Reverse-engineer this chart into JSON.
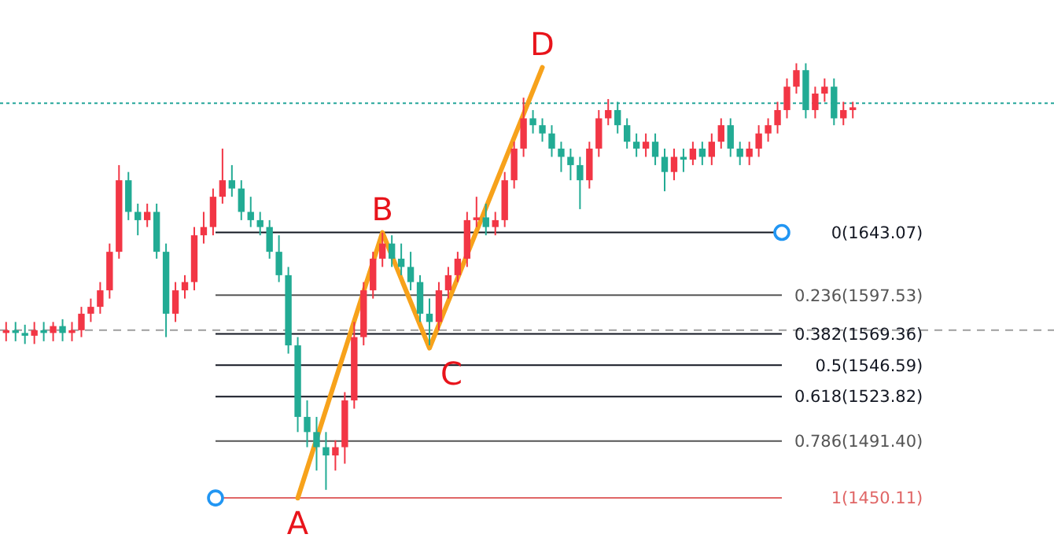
{
  "chart_data": {
    "type": "candlestick",
    "ylim": [
      1413,
      1812
    ],
    "categories": [
      null,
      null,
      null,
      null,
      null,
      null,
      null,
      null,
      null,
      null,
      null,
      null,
      null,
      null,
      null,
      null,
      null,
      null,
      null,
      null,
      null,
      null,
      null,
      null,
      null,
      null,
      null,
      null,
      null,
      null,
      null,
      null,
      null,
      null,
      null,
      null,
      null,
      null,
      null,
      null,
      null,
      null,
      null,
      null,
      null,
      null,
      null,
      null,
      null,
      null,
      null,
      null,
      null,
      null,
      null,
      null,
      null,
      null,
      null,
      null,
      null,
      null,
      null,
      null,
      null,
      null,
      null,
      null,
      null,
      null,
      null,
      null,
      null,
      null,
      null,
      null,
      null,
      null,
      null,
      null,
      null,
      null,
      null,
      null,
      null,
      null,
      null,
      null,
      null,
      null,
      null
    ],
    "yticks": [
      {
        "value": 1643.07,
        "label": "(1643.07)"
      },
      {
        "value": 1597.53,
        "label": "(1597.53)"
      },
      {
        "value": 1569.36,
        "label": "(1569.36)"
      },
      {
        "value": 1546.59,
        "label": "(1546.59)"
      },
      {
        "value": 1523.82,
        "label": "(1523.82)"
      },
      {
        "value": 1491.4,
        "label": "(1491.40)"
      },
      {
        "value": 1450.11,
        "label": "(1450.11)"
      }
    ],
    "ohlc": [
      [
        1570,
        1578,
        1564,
        1572
      ],
      [
        1572,
        1578,
        1564,
        1570
      ],
      [
        1570,
        1576,
        1562,
        1568
      ],
      [
        1568,
        1578,
        1562,
        1572
      ],
      [
        1572,
        1578,
        1564,
        1570
      ],
      [
        1570,
        1578,
        1564,
        1575
      ],
      [
        1575,
        1580,
        1564,
        1570
      ],
      [
        1570,
        1578,
        1564,
        1572
      ],
      [
        1572,
        1589,
        1567,
        1584
      ],
      [
        1584,
        1595,
        1578,
        1589
      ],
      [
        1589,
        1607,
        1584,
        1601
      ],
      [
        1601,
        1635,
        1595,
        1629
      ],
      [
        1629,
        1692,
        1624,
        1681
      ],
      [
        1681,
        1687,
        1652,
        1658
      ],
      [
        1658,
        1664,
        1641,
        1652
      ],
      [
        1652,
        1664,
        1647,
        1658
      ],
      [
        1658,
        1664,
        1624,
        1629
      ],
      [
        1629,
        1635,
        1567,
        1584
      ],
      [
        1584,
        1607,
        1578,
        1601
      ],
      [
        1601,
        1612,
        1595,
        1607
      ],
      [
        1607,
        1647,
        1601,
        1641
      ],
      [
        1641,
        1658,
        1635,
        1647
      ],
      [
        1647,
        1675,
        1641,
        1669
      ],
      [
        1669,
        1704,
        1664,
        1681
      ],
      [
        1681,
        1692,
        1669,
        1675
      ],
      [
        1675,
        1681,
        1652,
        1658
      ],
      [
        1658,
        1669,
        1647,
        1652
      ],
      [
        1652,
        1658,
        1641,
        1647
      ],
      [
        1647,
        1652,
        1624,
        1629
      ],
      [
        1629,
        1641,
        1607,
        1612
      ],
      [
        1612,
        1618,
        1555,
        1561
      ],
      [
        1561,
        1567,
        1498,
        1509
      ],
      [
        1509,
        1521,
        1487,
        1498
      ],
      [
        1498,
        1509,
        1470,
        1487
      ],
      [
        1487,
        1498,
        1456,
        1481
      ],
      [
        1481,
        1492,
        1470,
        1487
      ],
      [
        1487,
        1527,
        1475,
        1521
      ],
      [
        1521,
        1578,
        1515,
        1567
      ],
      [
        1567,
        1607,
        1561,
        1601
      ],
      [
        1601,
        1629,
        1595,
        1624
      ],
      [
        1624,
        1643,
        1618,
        1635
      ],
      [
        1635,
        1641,
        1618,
        1624
      ],
      [
        1624,
        1635,
        1612,
        1618
      ],
      [
        1618,
        1629,
        1601,
        1607
      ],
      [
        1607,
        1612,
        1578,
        1584
      ],
      [
        1584,
        1595,
        1561,
        1578
      ],
      [
        1578,
        1607,
        1572,
        1601
      ],
      [
        1601,
        1618,
        1595,
        1612
      ],
      [
        1612,
        1629,
        1607,
        1624
      ],
      [
        1624,
        1658,
        1618,
        1652
      ],
      [
        1652,
        1669,
        1647,
        1654
      ],
      [
        1654,
        1664,
        1641,
        1647
      ],
      [
        1647,
        1658,
        1641,
        1652
      ],
      [
        1652,
        1687,
        1647,
        1681
      ],
      [
        1681,
        1709,
        1675,
        1704
      ],
      [
        1704,
        1741,
        1698,
        1726
      ],
      [
        1726,
        1732,
        1715,
        1721
      ],
      [
        1721,
        1726,
        1709,
        1715
      ],
      [
        1715,
        1721,
        1698,
        1704
      ],
      [
        1704,
        1709,
        1687,
        1698
      ],
      [
        1698,
        1704,
        1681,
        1692
      ],
      [
        1692,
        1698,
        1660,
        1681
      ],
      [
        1681,
        1709,
        1675,
        1704
      ],
      [
        1704,
        1732,
        1698,
        1726
      ],
      [
        1726,
        1740,
        1721,
        1732
      ],
      [
        1732,
        1738,
        1715,
        1721
      ],
      [
        1721,
        1726,
        1704,
        1709
      ],
      [
        1709,
        1715,
        1698,
        1704
      ],
      [
        1704,
        1715,
        1698,
        1709
      ],
      [
        1709,
        1715,
        1692,
        1698
      ],
      [
        1698,
        1704,
        1673,
        1687
      ],
      [
        1687,
        1704,
        1681,
        1698
      ],
      [
        1698,
        1704,
        1687,
        1696
      ],
      [
        1696,
        1709,
        1692,
        1704
      ],
      [
        1704,
        1709,
        1692,
        1698
      ],
      [
        1698,
        1715,
        1692,
        1709
      ],
      [
        1709,
        1726,
        1704,
        1721
      ],
      [
        1721,
        1726,
        1698,
        1704
      ],
      [
        1704,
        1709,
        1692,
        1698
      ],
      [
        1698,
        1709,
        1692,
        1704
      ],
      [
        1704,
        1721,
        1698,
        1715
      ],
      [
        1715,
        1726,
        1709,
        1721
      ],
      [
        1721,
        1738,
        1715,
        1732
      ],
      [
        1732,
        1755,
        1726,
        1749
      ],
      [
        1749,
        1766,
        1744,
        1761
      ],
      [
        1761,
        1766,
        1726,
        1732
      ],
      [
        1732,
        1749,
        1726,
        1744
      ],
      [
        1744,
        1755,
        1738,
        1749
      ],
      [
        1749,
        1755,
        1721,
        1726
      ],
      [
        1726,
        1738,
        1721,
        1732
      ],
      [
        1732,
        1738,
        1726,
        1734
      ]
    ],
    "colors": [
      "#f23645",
      "#22ab94",
      "#22ab94",
      "#f23645",
      "#22ab94",
      "#f23645",
      "#22ab94",
      "#f23645",
      "#f23645",
      "#f23645",
      "#f23645",
      "#f23645",
      "#f23645",
      "#22ab94",
      "#22ab94",
      "#f23645",
      "#22ab94",
      "#22ab94",
      "#f23645",
      "#f23645",
      "#f23645",
      "#f23645",
      "#f23645",
      "#f23645",
      "#22ab94",
      "#22ab94",
      "#22ab94",
      "#22ab94",
      "#22ab94",
      "#22ab94",
      "#22ab94",
      "#22ab94",
      "#22ab94",
      "#22ab94",
      "#22ab94",
      "#f23645",
      "#f23645",
      "#f23645",
      "#f23645",
      "#f23645",
      "#f23645",
      "#22ab94",
      "#22ab94",
      "#22ab94",
      "#22ab94",
      "#22ab94",
      "#f23645",
      "#f23645",
      "#f23645",
      "#f23645",
      "#f23645",
      "#22ab94",
      "#f23645",
      "#f23645",
      "#f23645",
      "#f23645",
      "#22ab94",
      "#22ab94",
      "#22ab94",
      "#22ab94",
      "#22ab94",
      "#22ab94",
      "#f23645",
      "#f23645",
      "#f23645",
      "#22ab94",
      "#22ab94",
      "#22ab94",
      "#f23645",
      "#22ab94",
      "#22ab94",
      "#f23645",
      "#22ab94",
      "#f23645",
      "#22ab94",
      "#f23645",
      "#f23645",
      "#22ab94",
      "#22ab94",
      "#f23645",
      "#f23645",
      "#f23645",
      "#f23645",
      "#f23645",
      "#f23645",
      "#22ab94",
      "#f23645",
      "#f23645",
      "#22ab94",
      "#f23645",
      "#f23645"
    ],
    "ref_lines": [
      {
        "axis": "y",
        "value": 1737,
        "color": "#26a69a",
        "line_style": "dotted"
      },
      {
        "axis": "y",
        "value": 1572,
        "color": "#9e9e9e",
        "line_style": "dashed"
      },
      {
        "axis": "y",
        "value": 1643.07,
        "color": "#131722"
      },
      {
        "axis": "y",
        "value": 1597.53,
        "color": "#555555"
      },
      {
        "axis": "y",
        "value": 1569.36,
        "color": "#131722"
      },
      {
        "axis": "y",
        "value": 1546.59,
        "color": "#131722"
      },
      {
        "axis": "y",
        "value": 1523.82,
        "color": "#131722"
      },
      {
        "axis": "y",
        "value": 1491.4,
        "color": "#555555"
      },
      {
        "axis": "y",
        "value": 1450.11,
        "color": "#e06666"
      }
    ],
    "series": [
      {
        "type": "line",
        "color": "#f7a21b",
        "values": [
          null,
          null,
          null,
          null,
          null,
          null,
          null,
          null,
          null,
          null,
          null,
          null,
          null,
          null,
          null,
          null,
          null,
          null,
          null,
          null,
          null,
          null,
          null,
          null,
          null,
          null,
          null,
          null,
          null,
          null,
          null,
          1450,
          null,
          null,
          null,
          null,
          null,
          null,
          null,
          null,
          1643,
          null,
          null,
          null,
          null,
          1559,
          null,
          null,
          null,
          null,
          null,
          null,
          null,
          null,
          null,
          null,
          null,
          1763,
          null,
          null,
          null,
          null,
          null,
          null,
          null,
          null,
          null,
          null,
          null,
          null,
          null,
          null,
          null,
          null,
          null,
          null,
          null,
          null,
          null,
          null,
          null,
          null,
          null,
          null,
          null,
          null,
          null,
          null,
          null,
          null,
          null
        ]
      }
    ],
    "annotations": [
      "A",
      "B",
      "C",
      "D",
      "0",
      "0.236",
      "0.382",
      "0.5",
      "0.618",
      "0.786",
      "1"
    ]
  }
}
